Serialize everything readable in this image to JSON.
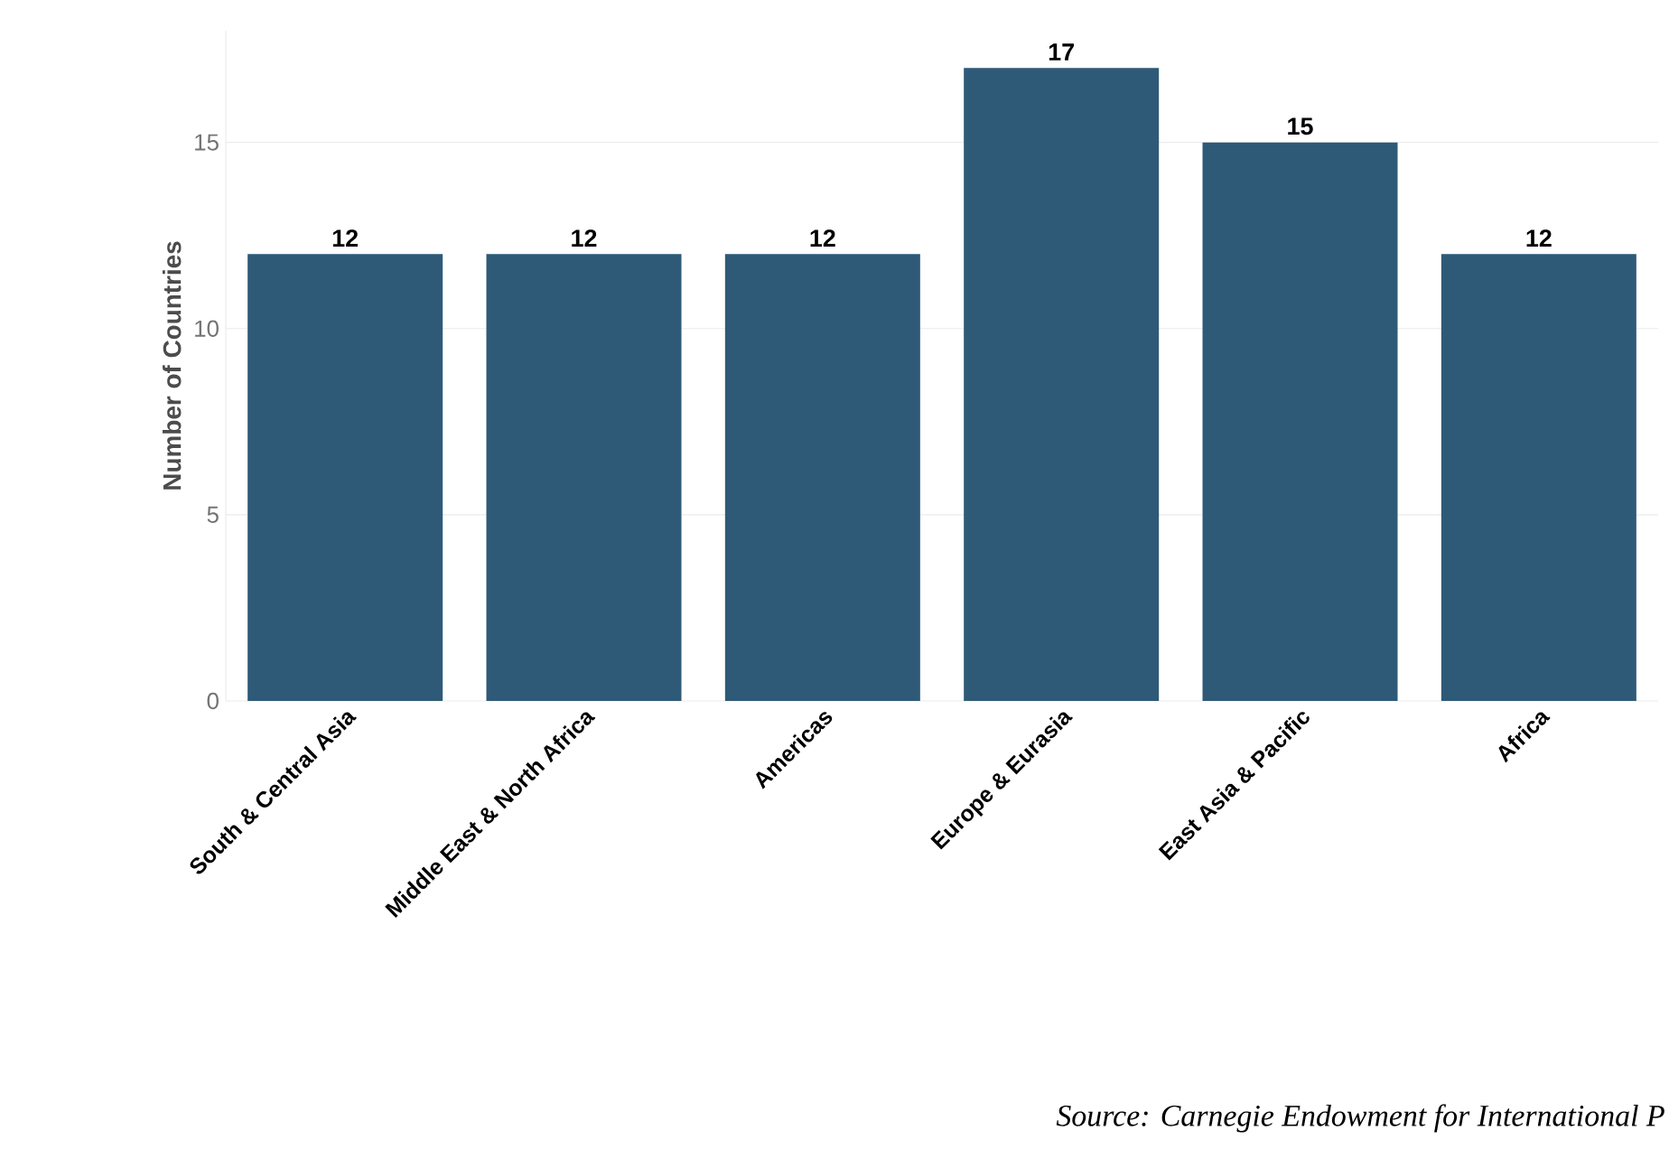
{
  "chart_data": {
    "type": "bar",
    "ylabel": "Number of Countries",
    "categories": [
      "South & Central Asia",
      "Middle East & North Africa",
      "Americas",
      "Europe & Eurasia",
      "East Asia & Pacific",
      "Africa"
    ],
    "values": [
      12,
      12,
      12,
      17,
      15,
      12
    ],
    "color": "#2e5a78",
    "ylim": [
      0,
      18
    ],
    "yticks": [
      0,
      5,
      10,
      15
    ],
    "grid": "y",
    "data_labels": true,
    "annotations": [
      "Source: Carnegie Endowment for International P"
    ]
  }
}
